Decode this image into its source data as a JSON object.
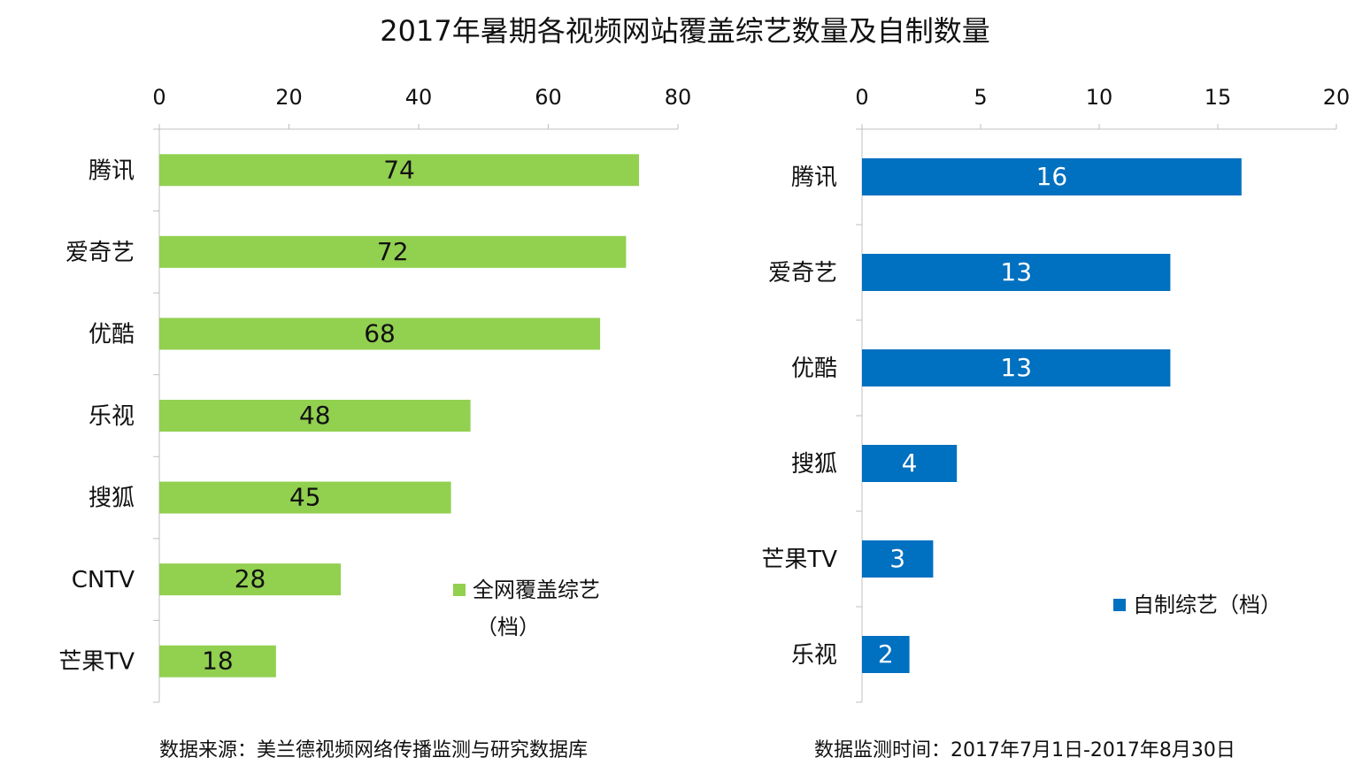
{
  "title": "2017年暑期各视频网站覆盖综艺数量及自制数量",
  "chart_data": [
    {
      "type": "bar",
      "orientation": "horizontal",
      "categories": [
        "腾讯",
        "爱奇艺",
        "优酷",
        "乐视",
        "搜狐",
        "CNTV",
        "芒果TV"
      ],
      "series": [
        {
          "name": "全网覆盖综艺（档）",
          "values": [
            74,
            72,
            68,
            48,
            45,
            28,
            18
          ]
        }
      ],
      "xlim": [
        0,
        80
      ],
      "ticks": [
        "0",
        "20",
        "40",
        "60",
        "80"
      ],
      "axis_position": "top",
      "legend_line1": "全网覆盖综艺",
      "legend_line2": "（档）",
      "legend_position": "bottom-right",
      "color": "#92D050"
    },
    {
      "type": "bar",
      "orientation": "horizontal",
      "categories": [
        "腾讯",
        "爱奇艺",
        "优酷",
        "搜狐",
        "芒果TV",
        "乐视"
      ],
      "series": [
        {
          "name": "自制综艺（档）",
          "values": [
            16,
            13,
            13,
            4,
            3,
            2
          ]
        }
      ],
      "xlim": [
        0,
        20
      ],
      "ticks": [
        "0",
        "5",
        "10",
        "15",
        "20"
      ],
      "axis_position": "top",
      "legend_line1": "自制综艺（档）",
      "legend_position": "bottom-right",
      "color": "#0070C0"
    }
  ],
  "footer": {
    "source": "数据来源：美兰德视频网络传播监测与研究数据库",
    "period": "数据监测时间：2017年7月1日-2017年8月30日"
  }
}
